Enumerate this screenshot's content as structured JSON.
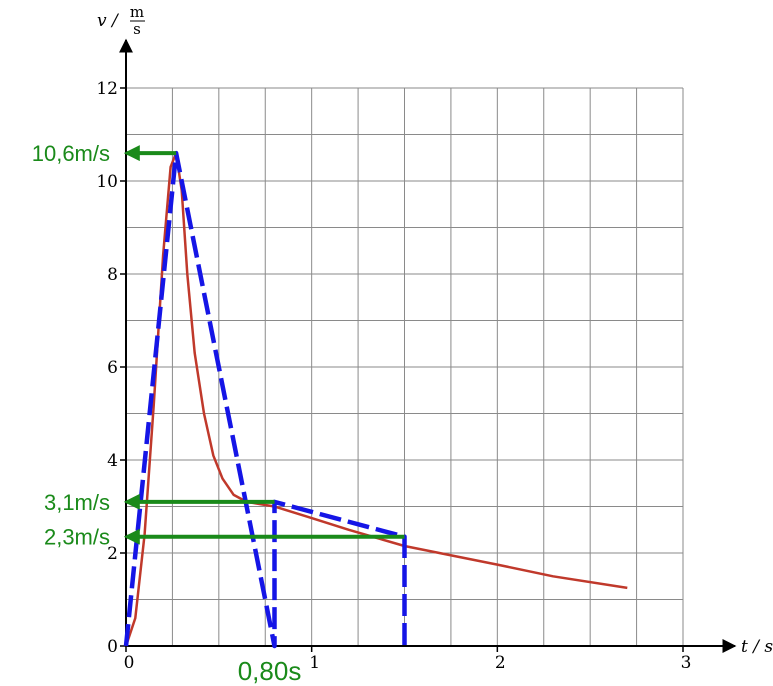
{
  "chart_data": {
    "type": "line",
    "title": "",
    "xlabel": "t / s",
    "ylabel_var": "v /",
    "ylabel_unit_num": "m",
    "ylabel_unit_den": "s",
    "xlim": [
      0,
      3
    ],
    "ylim": [
      0,
      12
    ],
    "grid": true,
    "x_minor_step": 0.25,
    "y_minor_step": 1,
    "x_ticks": [
      {
        "value": 0,
        "label": "0"
      },
      {
        "value": 1,
        "label": "1"
      },
      {
        "value": 2,
        "label": "2"
      },
      {
        "value": 3,
        "label": "3"
      }
    ],
    "y_ticks": [
      {
        "value": 0,
        "label": "0"
      },
      {
        "value": 2,
        "label": "2"
      },
      {
        "value": 4,
        "label": "4"
      },
      {
        "value": 6,
        "label": "6"
      },
      {
        "value": 8,
        "label": "8"
      },
      {
        "value": 10,
        "label": "10"
      },
      {
        "value": 12,
        "label": "12"
      }
    ],
    "series": [
      {
        "color": "#c0392b",
        "style": "solid",
        "points": [
          [
            0,
            0
          ],
          [
            0.05,
            0.6
          ],
          [
            0.1,
            2.4
          ],
          [
            0.15,
            5.2
          ],
          [
            0.2,
            8.4
          ],
          [
            0.24,
            10.3
          ],
          [
            0.27,
            10.6
          ],
          [
            0.3,
            9.8
          ],
          [
            0.33,
            8.0
          ],
          [
            0.37,
            6.3
          ],
          [
            0.42,
            5.0
          ],
          [
            0.47,
            4.1
          ],
          [
            0.52,
            3.6
          ],
          [
            0.58,
            3.25
          ],
          [
            0.65,
            3.1
          ],
          [
            0.8,
            3.0
          ],
          [
            1.0,
            2.75
          ],
          [
            1.2,
            2.5
          ],
          [
            1.5,
            2.15
          ],
          [
            2.0,
            1.75
          ],
          [
            2.3,
            1.5
          ],
          [
            2.7,
            1.25
          ]
        ]
      },
      {
        "color": "#1515e6",
        "style": "dashed",
        "points": [
          [
            0,
            0
          ],
          [
            0.27,
            10.6
          ],
          [
            0.8,
            0
          ],
          [
            0.8,
            3.1
          ],
          [
            1.5,
            2.35
          ],
          [
            1.5,
            0
          ]
        ]
      }
    ],
    "annotations": [
      {
        "text": "10,6m/s",
        "arrow_from": [
          0.27,
          10.6
        ],
        "arrow_to": [
          0,
          10.6
        ]
      },
      {
        "text": "3,1m/s",
        "arrow_from": [
          0.8,
          3.1
        ],
        "arrow_to": [
          0,
          3.1
        ]
      },
      {
        "text": "2,3m/s",
        "arrow_from": [
          1.5,
          2.35
        ],
        "arrow_to": [
          0,
          2.35
        ]
      },
      {
        "text": "0,80s",
        "x": 0.8
      }
    ],
    "annotation_color": "#1a8a1a"
  }
}
